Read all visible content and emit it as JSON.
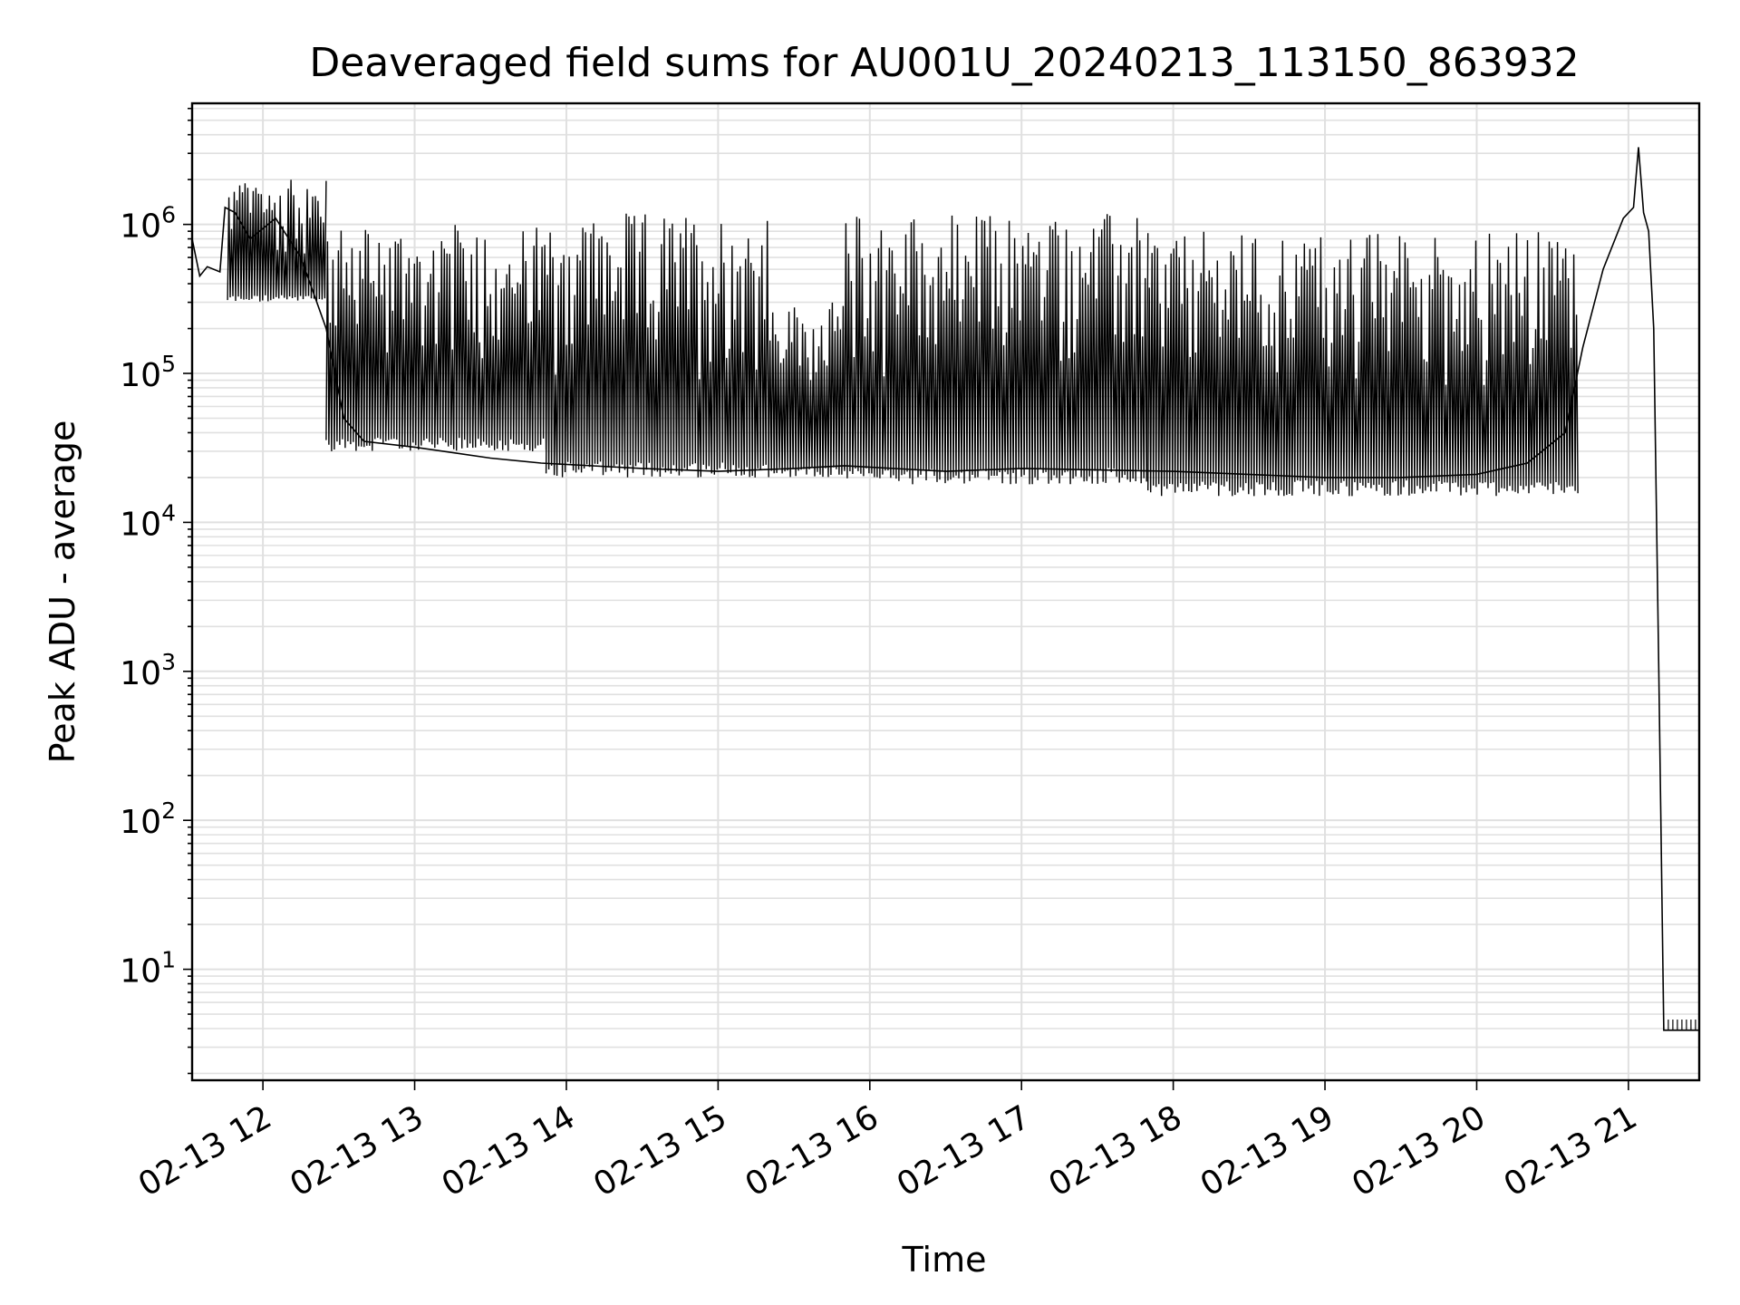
{
  "chart_data": {
    "type": "line",
    "title": "Deaveraged field sums for AU001U_20240213_113150_863932",
    "xlabel": "Time",
    "ylabel": "Peak ADU - average",
    "yscale": "log",
    "grid": true,
    "legend": "none",
    "line_color": "#000000",
    "grid_color": "#e0e0e0",
    "xlim": [
      "2024-02-13T11:32:00",
      "2024-02-13T21:28:00"
    ],
    "ylim": [
      1.8,
      6500000
    ],
    "x_ticks": [
      {
        "value": "2024-02-13T12:00:00",
        "label": "02-13 12"
      },
      {
        "value": "2024-02-13T13:00:00",
        "label": "02-13 13"
      },
      {
        "value": "2024-02-13T14:00:00",
        "label": "02-13 14"
      },
      {
        "value": "2024-02-13T15:00:00",
        "label": "02-13 15"
      },
      {
        "value": "2024-02-13T16:00:00",
        "label": "02-13 16"
      },
      {
        "value": "2024-02-13T17:00:00",
        "label": "02-13 17"
      },
      {
        "value": "2024-02-13T18:00:00",
        "label": "02-13 18"
      },
      {
        "value": "2024-02-13T19:00:00",
        "label": "02-13 19"
      },
      {
        "value": "2024-02-13T20:00:00",
        "label": "02-13 20"
      },
      {
        "value": "2024-02-13T21:00:00",
        "label": "02-13 21"
      }
    ],
    "y_ticks": [
      {
        "value": 10,
        "base": "10",
        "exp": "1"
      },
      {
        "value": 100,
        "base": "10",
        "exp": "2"
      },
      {
        "value": 1000,
        "base": "10",
        "exp": "3"
      },
      {
        "value": 10000,
        "base": "10",
        "exp": "4"
      },
      {
        "value": 100000,
        "base": "10",
        "exp": "5"
      },
      {
        "value": 1000000,
        "base": "10",
        "exp": "6"
      }
    ],
    "series": [
      {
        "points": [
          [
            "2024-02-13T11:32:00",
            800000
          ],
          [
            "2024-02-13T11:35:00",
            450000
          ],
          [
            "2024-02-13T11:38:00",
            520000
          ],
          [
            "2024-02-13T11:43:00",
            480000
          ],
          [
            "2024-02-13T11:45:00",
            1300000
          ],
          [
            "2024-02-13T11:49:00",
            1200000
          ],
          [
            "2024-02-13T11:55:00",
            800000
          ],
          [
            "2024-02-13T12:05:00",
            1100000
          ],
          [
            "2024-02-13T12:15:00",
            600000
          ],
          [
            "2024-02-13T12:25:00",
            200000
          ],
          [
            "2024-02-13T12:32:00",
            50000
          ],
          [
            "2024-02-13T12:40:00",
            35000
          ],
          [
            "2024-02-13T13:00:00",
            32000
          ],
          [
            "2024-02-13T13:30:00",
            27000
          ],
          [
            "2024-02-13T13:50:00",
            25000
          ],
          [
            "2024-02-13T14:30:00",
            23000
          ],
          [
            "2024-02-13T15:00:00",
            22000
          ],
          [
            "2024-02-13T15:30:00",
            23000
          ],
          [
            "2024-02-13T15:50:00",
            24000
          ],
          [
            "2024-02-13T16:30:00",
            22000
          ],
          [
            "2024-02-13T17:00:00",
            23000
          ],
          [
            "2024-02-13T18:00:00",
            22000
          ],
          [
            "2024-02-13T19:00:00",
            20000
          ],
          [
            "2024-02-13T19:30:00",
            20000
          ],
          [
            "2024-02-13T20:00:00",
            21000
          ],
          [
            "2024-02-13T20:20:00",
            25000
          ],
          [
            "2024-02-13T20:35:00",
            40000
          ],
          [
            "2024-02-13T20:42:00",
            150000
          ],
          [
            "2024-02-13T20:50:00",
            500000
          ],
          [
            "2024-02-13T20:58:00",
            1100000
          ],
          [
            "2024-02-13T21:02:00",
            1300000
          ],
          [
            "2024-02-13T21:04:00",
            3300000
          ],
          [
            "2024-02-13T21:06:00",
            1200000
          ],
          [
            "2024-02-13T21:08:00",
            900000
          ],
          [
            "2024-02-13T21:10:00",
            200000
          ],
          [
            "2024-02-13T21:12:00",
            1000
          ],
          [
            "2024-02-13T21:14:00",
            3.9
          ],
          [
            "2024-02-13T21:28:00",
            3.9
          ]
        ],
        "spikes": {
          "segments": [
            {
              "from": "2024-02-13T11:46:00",
              "to": "2024-02-13T12:25:00",
              "low": 300000,
              "high": 2000000
            },
            {
              "from": "2024-02-13T12:25:00",
              "to": "2024-02-13T13:52:00",
              "low": 30000,
              "high": 1000000
            },
            {
              "from": "2024-02-13T13:52:00",
              "to": "2024-02-13T15:20:00",
              "low": 20000,
              "high": 1200000
            },
            {
              "from": "2024-02-13T15:20:00",
              "to": "2024-02-13T15:50:00",
              "low": 20000,
              "high": 300000
            },
            {
              "from": "2024-02-13T15:50:00",
              "to": "2024-02-13T17:50:00",
              "low": 18000,
              "high": 1200000
            },
            {
              "from": "2024-02-13T17:50:00",
              "to": "2024-02-13T20:40:00",
              "low": 15000,
              "high": 900000
            }
          ]
        },
        "hatch_region": {
          "from": "2024-02-13T21:14:00",
          "to": "2024-02-13T21:28:00",
          "low": 3.9,
          "high": 4.6
        }
      }
    ]
  }
}
